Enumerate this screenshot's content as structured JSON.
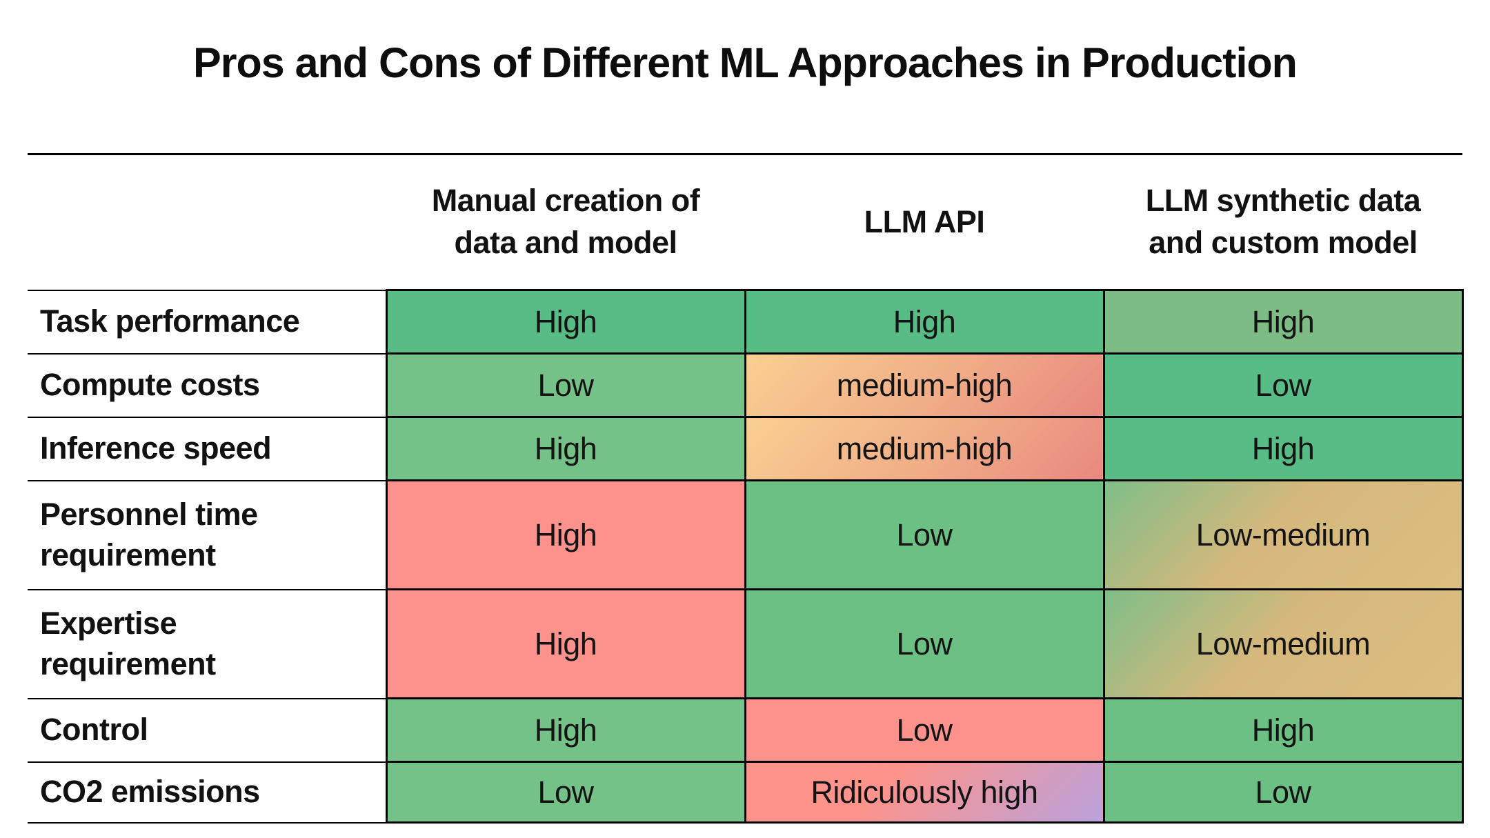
{
  "slide": {
    "title": "Pros and Cons of Different ML Approaches in Production"
  },
  "table": {
    "corner": "",
    "columns": [
      "Manual creation of\ndata and model",
      "LLM API",
      "LLM synthetic data\nand custom model"
    ],
    "rows": [
      {
        "label": "Task performance",
        "cells": [
          {
            "text": "High",
            "bg": "green-strong"
          },
          {
            "text": "High",
            "bg": "green-strong"
          },
          {
            "text": "High",
            "bg": "green-sage"
          }
        ]
      },
      {
        "label": "Compute costs",
        "cells": [
          {
            "text": "Low",
            "bg": "green-light"
          },
          {
            "text": "medium-high",
            "bg": "grad-medium-high"
          },
          {
            "text": "Low",
            "bg": "green-strong"
          }
        ]
      },
      {
        "label": "Inference speed",
        "cells": [
          {
            "text": "High",
            "bg": "green-light"
          },
          {
            "text": "medium-high",
            "bg": "grad-medium-high"
          },
          {
            "text": "High",
            "bg": "green-strong"
          }
        ]
      },
      {
        "label": "Personnel time\nrequirement",
        "cells": [
          {
            "text": "High",
            "bg": "salmon"
          },
          {
            "text": "Low",
            "bg": "green-medium"
          },
          {
            "text": "Low-medium",
            "bg": "grad-low-medium"
          }
        ]
      },
      {
        "label": "Expertise\nrequirement",
        "cells": [
          {
            "text": "High",
            "bg": "salmon"
          },
          {
            "text": "Low",
            "bg": "green-medium"
          },
          {
            "text": "Low-medium",
            "bg": "grad-low-medium"
          }
        ]
      },
      {
        "label": "Control",
        "cells": [
          {
            "text": "High",
            "bg": "green-light"
          },
          {
            "text": "Low",
            "bg": "salmon"
          },
          {
            "text": "High",
            "bg": "green-medium"
          }
        ]
      },
      {
        "label": "CO2 emissions",
        "cells": [
          {
            "text": "Low",
            "bg": "green-light"
          },
          {
            "text": "Ridiculously high",
            "bg": "grad-ridiculous"
          },
          {
            "text": "Low",
            "bg": "green-medium"
          }
        ]
      }
    ]
  },
  "colors": {
    "green_strong": "#58bc86",
    "green_light": "#74c287",
    "green_medium": "#6cc084",
    "green_sage": "#7ebc85",
    "salmon": "#fc928b",
    "grad_medium_high": [
      "#f9d092",
      "#e8887f"
    ],
    "grad_low_medium": [
      "#7fbe88",
      "#dcbe80"
    ],
    "grad_ridiculous": [
      "#fd938b",
      "#b9a2de"
    ],
    "border": "#000000",
    "text": "#111111"
  },
  "chart_data": {
    "type": "table",
    "title": "Pros and Cons of Different ML Approaches in Production",
    "columns": [
      "Manual creation of data and model",
      "LLM API",
      "LLM synthetic data and custom model"
    ],
    "row_labels": [
      "Task performance",
      "Compute costs",
      "Inference speed",
      "Personnel time requirement",
      "Expertise requirement",
      "Control",
      "CO2 emissions"
    ],
    "values": [
      [
        "High",
        "High",
        "High"
      ],
      [
        "Low",
        "medium-high",
        "Low"
      ],
      [
        "High",
        "medium-high",
        "High"
      ],
      [
        "High",
        "Low",
        "Low-medium"
      ],
      [
        "High",
        "Low",
        "Low-medium"
      ],
      [
        "High",
        "Low",
        "High"
      ],
      [
        "Low",
        "Ridiculously high",
        "Low"
      ]
    ]
  }
}
